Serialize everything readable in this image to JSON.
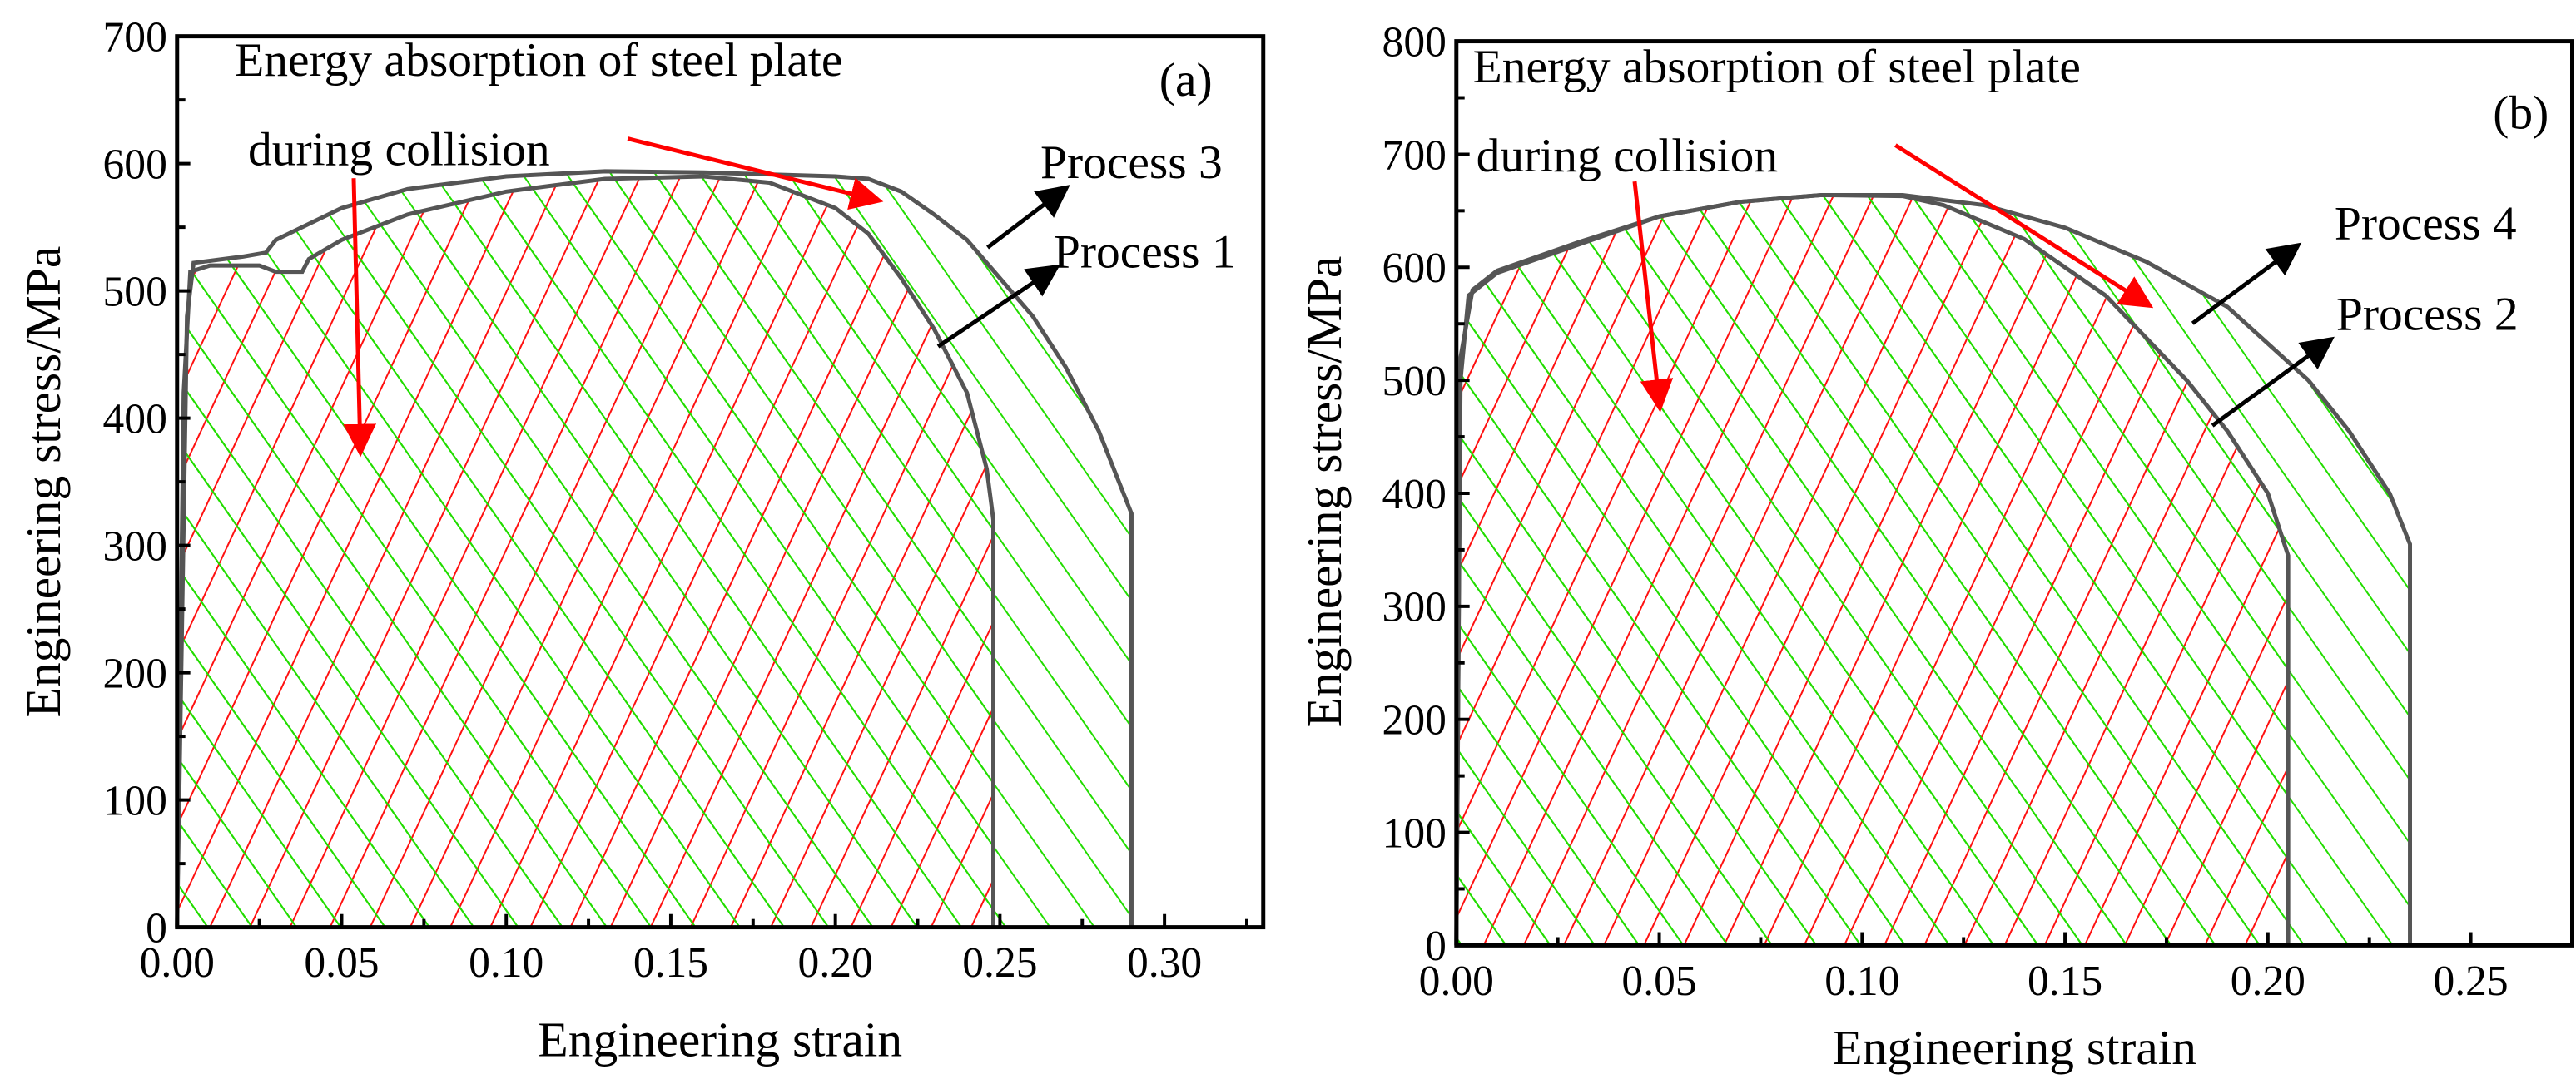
{
  "chart_data": [
    {
      "type": "area",
      "panel_label": "(a)",
      "xlabel": "Engineering strain",
      "ylabel": "Engineering stress/MPa",
      "xlim": [
        0,
        0.33
      ],
      "ylim": [
        0,
        700
      ],
      "xticks": [
        "0.00",
        "0.05",
        "0.10",
        "0.15",
        "0.20",
        "0.25",
        "0.30"
      ],
      "yticks": [
        "0",
        "100",
        "200",
        "300",
        "400",
        "500",
        "600",
        "700"
      ],
      "annotation_line1": "Energy absorption of steel plate",
      "annotation_line2": "during collision",
      "series": [
        {
          "name": "Process 3",
          "points": [
            [
              0,
              0
            ],
            [
              0.003,
              480
            ],
            [
              0.005,
              522
            ],
            [
              0.02,
              527
            ],
            [
              0.027,
              530
            ],
            [
              0.03,
              540
            ],
            [
              0.05,
              565
            ],
            [
              0.07,
              580
            ],
            [
              0.1,
              590
            ],
            [
              0.13,
              594
            ],
            [
              0.16,
              593
            ],
            [
              0.2,
              590
            ],
            [
              0.21,
              588
            ],
            [
              0.22,
              578
            ],
            [
              0.23,
              560
            ],
            [
              0.24,
              540
            ],
            [
              0.25,
              510
            ],
            [
              0.26,
              480
            ],
            [
              0.27,
              440
            ],
            [
              0.28,
              390
            ],
            [
              0.29,
              325
            ],
            [
              0.29,
              0
            ]
          ]
        },
        {
          "name": "Process 1",
          "points": [
            [
              0,
              0
            ],
            [
              0.002,
              420
            ],
            [
              0.004,
              515
            ],
            [
              0.01,
              520
            ],
            [
              0.025,
              520
            ],
            [
              0.03,
              515
            ],
            [
              0.038,
              515
            ],
            [
              0.04,
              525
            ],
            [
              0.05,
              540
            ],
            [
              0.07,
              560
            ],
            [
              0.1,
              578
            ],
            [
              0.13,
              588
            ],
            [
              0.16,
              590
            ],
            [
              0.18,
              585
            ],
            [
              0.2,
              565
            ],
            [
              0.21,
              545
            ],
            [
              0.22,
              510
            ],
            [
              0.23,
              470
            ],
            [
              0.24,
              420
            ],
            [
              0.246,
              360
            ],
            [
              0.248,
              320
            ],
            [
              0.248,
              0
            ]
          ]
        }
      ]
    },
    {
      "type": "area",
      "panel_label": "(b)",
      "xlabel": "Engineering strain",
      "ylabel": "Engineering stress/MPa",
      "xlim": [
        0,
        0.275
      ],
      "ylim": [
        0,
        800
      ],
      "xticks": [
        "0.00",
        "0.05",
        "0.10",
        "0.15",
        "0.20",
        "0.25"
      ],
      "yticks": [
        "0",
        "100",
        "200",
        "300",
        "400",
        "500",
        "600",
        "700",
        "800"
      ],
      "annotation_line1": "Energy absorption of steel plate",
      "annotation_line2": "during collision",
      "series": [
        {
          "name": "Process 4",
          "points": [
            [
              0,
              0
            ],
            [
              0.001,
              520
            ],
            [
              0.004,
              580
            ],
            [
              0.01,
              597
            ],
            [
              0.03,
              622
            ],
            [
              0.05,
              645
            ],
            [
              0.07,
              658
            ],
            [
              0.09,
              664
            ],
            [
              0.11,
              664
            ],
            [
              0.13,
              655
            ],
            [
              0.15,
              635
            ],
            [
              0.17,
              605
            ],
            [
              0.19,
              565
            ],
            [
              0.21,
              500
            ],
            [
              0.22,
              455
            ],
            [
              0.23,
              400
            ],
            [
              0.235,
              355
            ],
            [
              0.235,
              0
            ]
          ]
        },
        {
          "name": "Process 2",
          "points": [
            [
              0,
              0
            ],
            [
              0.001,
              500
            ],
            [
              0.003,
              575
            ],
            [
              0.01,
              595
            ],
            [
              0.03,
              620
            ],
            [
              0.05,
              645
            ],
            [
              0.07,
              658
            ],
            [
              0.09,
              664
            ],
            [
              0.11,
              663
            ],
            [
              0.12,
              655
            ],
            [
              0.14,
              625
            ],
            [
              0.16,
              575
            ],
            [
              0.18,
              500
            ],
            [
              0.19,
              455
            ],
            [
              0.2,
              400
            ],
            [
              0.205,
              345
            ],
            [
              0.205,
              0
            ]
          ]
        }
      ]
    }
  ],
  "colors": {
    "outer_hatch": "#22dd00",
    "inner_hatch": "#ff1010",
    "curve": "#555555",
    "arrow_red": "#ff0000",
    "arrow_black": "#000000"
  }
}
